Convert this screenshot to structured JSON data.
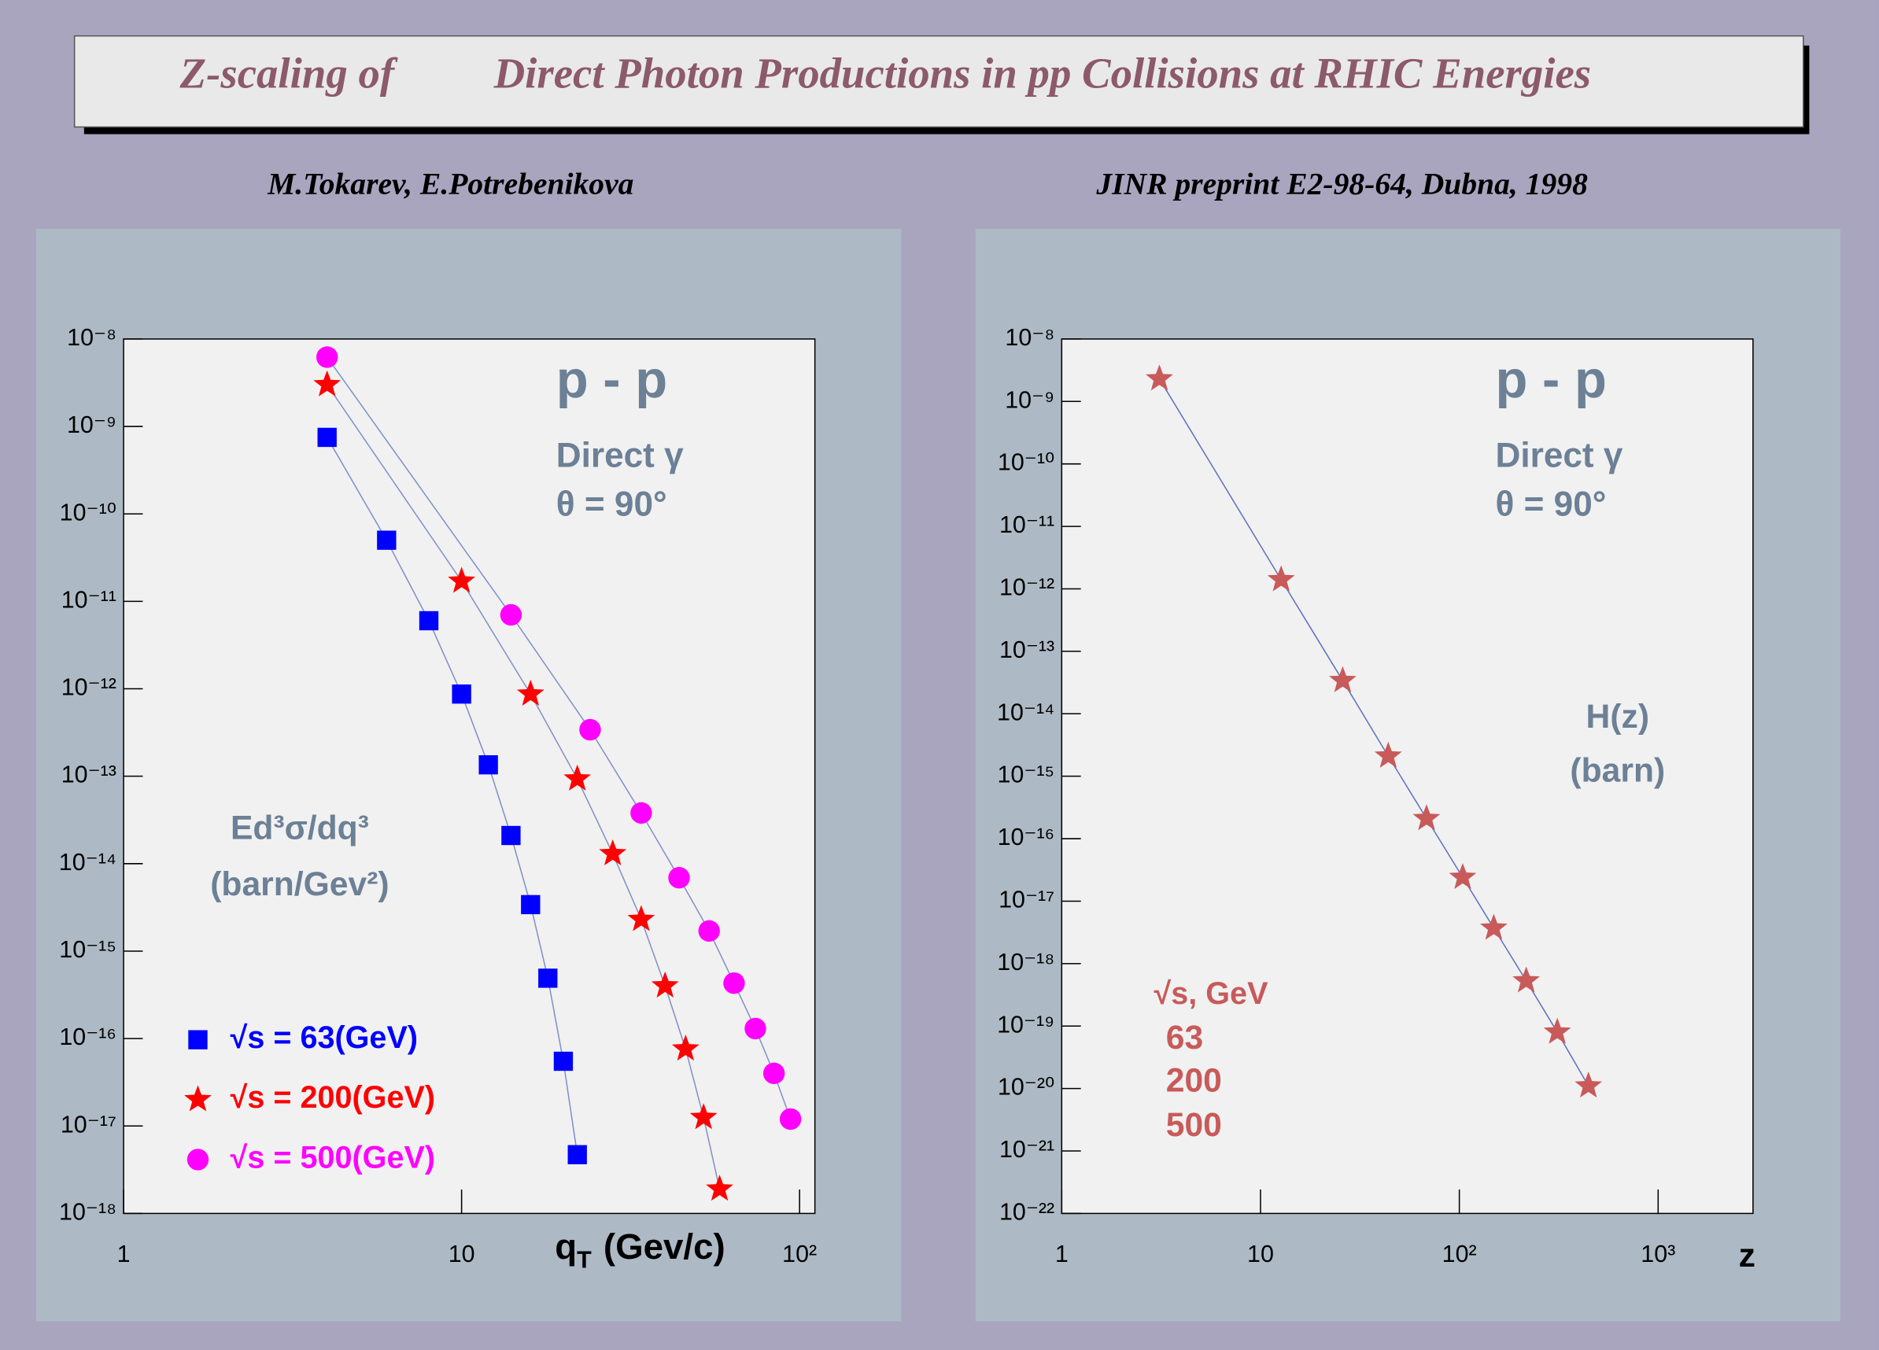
{
  "header": {
    "title": [
      "Z-scaling of",
      "Direct Photon Productions in pp Collisions at RHIC Energies"
    ],
    "authors": "M.Tokarev, E.Potrebenikova",
    "reference": "JINR preprint E2-98-64, Dubna, 1998"
  },
  "chart_data": [
    {
      "type": "scatter",
      "log_x": true,
      "log_y": true,
      "connect_points": true,
      "line_color": "#8090c8",
      "annotations": [
        "p - p",
        "Direct γ",
        "θ = 90°"
      ],
      "y_label": [
        "Ed³σ/dq³",
        "(barn/Gev²)"
      ],
      "x_label": {
        "symbol": "q",
        "subscript": "T",
        "unit": "(Gev/c)"
      },
      "xlim": [
        1,
        111
      ],
      "xticks": [
        1,
        10,
        {
          "value": 100,
          "label": "10²"
        }
      ],
      "ylim": [
        1e-18,
        1e-08
      ],
      "yticks": [
        {
          "value": 1e-08,
          "label": "10⁻⁸"
        },
        {
          "value": 1e-09,
          "label": "10⁻⁹"
        },
        {
          "value": 1e-10,
          "label": "10⁻¹⁰"
        },
        {
          "value": 1e-11,
          "label": "10⁻¹¹"
        },
        {
          "value": 1e-12,
          "label": "10⁻¹²"
        },
        {
          "value": 1e-13,
          "label": "10⁻¹³"
        },
        {
          "value": 1e-14,
          "label": "10⁻¹⁴"
        },
        {
          "value": 1e-15,
          "label": "10⁻¹⁵"
        },
        {
          "value": 1e-16,
          "label": "10⁻¹⁶"
        },
        {
          "value": 1e-17,
          "label": "10⁻¹⁷"
        },
        {
          "value": 1e-18,
          "label": "10⁻¹⁸"
        }
      ],
      "series": [
        {
          "name": "√s = 63(GeV)",
          "color": "#0000ff",
          "marker": "square",
          "x": [
            4,
            6,
            8,
            10,
            12,
            14,
            16,
            18,
            20,
            22
          ],
          "values": [
            7.5e-10,
            5e-11,
            6e-12,
            8.7e-13,
            1.35e-13,
            2.1e-14,
            3.4e-15,
            4.9e-16,
            5.5e-17,
            4.7e-18
          ]
        },
        {
          "name": "√s = 200(GeV)",
          "color": "#ff0000",
          "marker": "star",
          "x": [
            4,
            10,
            16,
            22,
            28,
            34,
            40,
            46,
            52,
            58
          ],
          "values": [
            3e-09,
            1.7e-11,
            8.7e-13,
            9.3e-14,
            1.3e-14,
            2.3e-15,
            4e-16,
            7.6e-17,
            1.25e-17,
            1.9e-18
          ]
        },
        {
          "name": "√s = 500(GeV)",
          "color": "#ff00ff",
          "marker": "circle",
          "x": [
            4,
            14,
            24,
            34,
            44,
            54,
            64,
            74,
            84,
            94
          ],
          "values": [
            6.2e-09,
            7e-12,
            3.4e-13,
            3.8e-14,
            6.9e-15,
            1.7e-15,
            4.3e-16,
            1.3e-16,
            4e-17,
            1.2e-17
          ]
        }
      ]
    },
    {
      "type": "scatter",
      "log_x": true,
      "log_y": true,
      "connect_points": true,
      "line_color": "#6070c0",
      "annotations": [
        "p - p",
        "Direct γ",
        "θ = 90°"
      ],
      "y_label": [
        "H(z)",
        "(barn)"
      ],
      "x_label": "z",
      "legend_title": "√s, GeV",
      "legend_items": [
        "63",
        "200",
        "500"
      ],
      "xlim": [
        1,
        3000
      ],
      "xticks": [
        1,
        10,
        {
          "value": 100,
          "label": "10²"
        },
        {
          "value": 1000,
          "label": "10³"
        }
      ],
      "ylim": [
        1e-22,
        1e-08
      ],
      "yticks": [
        {
          "value": 1e-08,
          "label": "10⁻⁸"
        },
        {
          "value": 1e-09,
          "label": "10⁻⁹"
        },
        {
          "value": 1e-10,
          "label": "10⁻¹⁰"
        },
        {
          "value": 1e-11,
          "label": "10⁻¹¹"
        },
        {
          "value": 1e-12,
          "label": "10⁻¹²"
        },
        {
          "value": 1e-13,
          "label": "10⁻¹³"
        },
        {
          "value": 1e-14,
          "label": "10⁻¹⁴"
        },
        {
          "value": 1e-15,
          "label": "10⁻¹⁵"
        },
        {
          "value": 1e-16,
          "label": "10⁻¹⁶"
        },
        {
          "value": 1e-17,
          "label": "10⁻¹⁷"
        },
        {
          "value": 1e-18,
          "label": "10⁻¹⁸"
        },
        {
          "value": 1e-19,
          "label": "10⁻¹⁹"
        },
        {
          "value": 1e-20,
          "label": "10⁻²⁰"
        },
        {
          "value": 1e-21,
          "label": "10⁻²¹"
        },
        {
          "value": 1e-22,
          "label": "10⁻²²"
        }
      ],
      "series": [
        {
          "color": "#c85a5a",
          "marker": "star",
          "x": [
            3.1,
            12.7,
            25.9,
            43.9,
            68.4,
            104,
            149,
            217,
            311,
            446
          ],
          "values": [
            2.3e-09,
            1.4e-12,
            3.4e-14,
            2.1e-15,
            2.1e-16,
            2.4e-17,
            3.7e-18,
            5.3e-19,
            8e-20,
            1.1e-20
          ]
        }
      ]
    }
  ]
}
